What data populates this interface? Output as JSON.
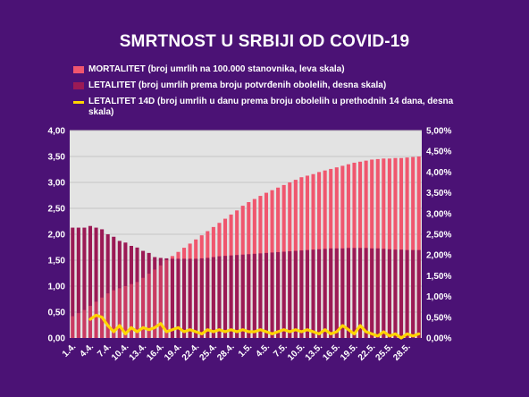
{
  "chart_data": {
    "type": "bar",
    "title": "SMRTNOST U SRBIJI OD COVID-19",
    "legend": {
      "placement": "top",
      "items": [
        {
          "label": "MORTALITET (broj umrlih na 100.000 stanovnika, leva skala)",
          "color": "#f0566e",
          "kind": "bar"
        },
        {
          "label": "LETALITET (broj umrlih prema broju potvrđenih obolelih, desna skala)",
          "color": "#9b1a55",
          "kind": "bar"
        },
        {
          "label": "LETALITET 14D (broj umrlih u danu prema broju obolelih u prethodnih 14 dana, desna skala)",
          "color": "#ffd400",
          "kind": "line"
        }
      ]
    },
    "left_axis": {
      "min": 0,
      "max": 4,
      "ticks": [
        "0,00",
        "0,50",
        "1,00",
        "1,50",
        "2,00",
        "2,50",
        "3,00",
        "3,50",
        "4,00"
      ]
    },
    "right_axis": {
      "min": 0,
      "max": 5,
      "ticks": [
        "0,00%",
        "0,50%",
        "1,00%",
        "1,50%",
        "2,00%",
        "2,50%",
        "3,00%",
        "3,50%",
        "4,00%",
        "4,50%",
        "5,00%"
      ]
    },
    "x_tick_labels": [
      "1.4.",
      "4.4.",
      "7.4.",
      "10.4.",
      "13.4.",
      "16.4.",
      "19.4.",
      "22.4.",
      "25.4.",
      "28.4.",
      "1.5.",
      "4.5.",
      "7.5.",
      "10.5.",
      "13.5.",
      "16.5.",
      "19.5.",
      "22.5.",
      "25.5.",
      "28.5."
    ],
    "grid": true,
    "series": [
      {
        "name": "MORTALITET (broj umrlih na 100.000 stanovnika, leva skala)",
        "axis": "left",
        "values": [
          0.42,
          0.48,
          0.54,
          0.62,
          0.7,
          0.78,
          0.86,
          0.92,
          0.96,
          1.0,
          1.04,
          1.08,
          1.16,
          1.24,
          1.32,
          1.4,
          1.5,
          1.58,
          1.66,
          1.74,
          1.82,
          1.9,
          1.98,
          2.06,
          2.14,
          2.22,
          2.3,
          2.38,
          2.46,
          2.55,
          2.62,
          2.68,
          2.74,
          2.8,
          2.85,
          2.9,
          2.95,
          3.0,
          3.05,
          3.1,
          3.13,
          3.16,
          3.2,
          3.23,
          3.26,
          3.29,
          3.32,
          3.35,
          3.38,
          3.4,
          3.42,
          3.44,
          3.45,
          3.46,
          3.46,
          3.47,
          3.47,
          3.48,
          3.49,
          3.5
        ]
      },
      {
        "name": "LETALITET (broj umrlih prema broju potvrđenih obolelih, desna skala)",
        "axis": "right",
        "values": [
          2.66,
          2.66,
          2.66,
          2.7,
          2.66,
          2.62,
          2.5,
          2.44,
          2.34,
          2.3,
          2.22,
          2.18,
          2.1,
          2.05,
          1.95,
          1.93,
          1.92,
          1.91,
          1.91,
          1.91,
          1.91,
          1.91,
          1.92,
          1.93,
          1.95,
          1.97,
          1.98,
          1.99,
          2.0,
          2.01,
          2.02,
          2.03,
          2.04,
          2.05,
          2.06,
          2.07,
          2.08,
          2.09,
          2.1,
          2.11,
          2.12,
          2.13,
          2.14,
          2.15,
          2.16,
          2.16,
          2.16,
          2.17,
          2.17,
          2.17,
          2.17,
          2.16,
          2.16,
          2.15,
          2.14,
          2.13,
          2.13,
          2.12,
          2.12,
          2.12
        ]
      },
      {
        "name": "LETALITET 14D (broj umrlih u danu prema broju obolelih u prethodnih 14 dana, desna skala)",
        "axis": "right",
        "values": [
          null,
          null,
          null,
          0.45,
          0.55,
          0.5,
          0.3,
          0.15,
          0.3,
          0.1,
          0.25,
          0.15,
          0.25,
          0.2,
          0.25,
          0.35,
          0.15,
          0.2,
          0.25,
          0.15,
          0.2,
          0.15,
          0.1,
          0.2,
          0.15,
          0.2,
          0.15,
          0.2,
          0.15,
          0.2,
          0.15,
          0.15,
          0.2,
          0.15,
          0.1,
          0.15,
          0.2,
          0.15,
          0.2,
          0.15,
          0.2,
          0.15,
          0.1,
          0.2,
          0.1,
          0.15,
          0.3,
          0.2,
          0.1,
          0.3,
          0.15,
          0.1,
          0.05,
          0.15,
          0.05,
          0.1,
          0.0,
          0.1,
          0.05,
          0.1
        ]
      }
    ]
  }
}
